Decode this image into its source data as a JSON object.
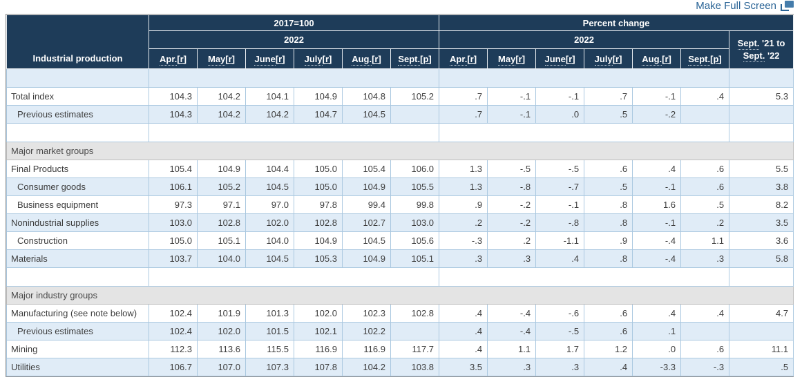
{
  "page": {
    "make_full_screen_label": "Make Full Screen"
  },
  "colors": {
    "header_navy": "#1e3c59",
    "row_light_blue": "#e0ecf7",
    "grid_border_blue": "#aac8e0",
    "section_gray": "#e4e4e4",
    "link_blue": "#2a6496",
    "outer_border_gray": "#8f8f8f"
  },
  "table": {
    "stub_header": "Industrial production",
    "index_group_label": "2017=100",
    "pct_group_label": "Percent change",
    "year_label": "2022",
    "yoy_header": {
      "line1_abbr": "Sept.",
      "line1_rest": " '21 to",
      "line2_abbr": "Sept.",
      "line2_rest": " '22"
    },
    "months": [
      {
        "abbr": "Apr.",
        "note": "[r]"
      },
      {
        "abbr": "May",
        "note": "[r]"
      },
      {
        "abbr": "June",
        "note": "[r]"
      },
      {
        "abbr": "July",
        "note": "[r]"
      },
      {
        "abbr": "Aug.",
        "note": "[r]"
      },
      {
        "abbr": "Sept.",
        "note": "[p]"
      }
    ],
    "rows": [
      {
        "type": "spacer"
      },
      {
        "type": "data",
        "label": "Total index",
        "indent": false,
        "idx": [
          "104.3",
          "104.2",
          "104.1",
          "104.9",
          "104.8",
          "105.2"
        ],
        "pct": [
          ".7",
          "-.1",
          "-.1",
          ".7",
          "-.1",
          ".4"
        ],
        "yoy": "5.3"
      },
      {
        "type": "data",
        "label": "Previous estimates",
        "indent": true,
        "idx": [
          "104.3",
          "104.2",
          "104.2",
          "104.7",
          "104.5",
          ""
        ],
        "pct": [
          ".7",
          "-.1",
          ".0",
          ".5",
          "-.2",
          ""
        ],
        "yoy": ""
      },
      {
        "type": "spacer"
      },
      {
        "type": "section",
        "label": "Major market groups"
      },
      {
        "type": "data",
        "label": "Final Products",
        "indent": false,
        "idx": [
          "105.4",
          "104.9",
          "104.4",
          "105.0",
          "105.4",
          "106.0"
        ],
        "pct": [
          "1.3",
          "-.5",
          "-.5",
          ".6",
          ".4",
          ".6"
        ],
        "yoy": "5.5"
      },
      {
        "type": "data",
        "label": "Consumer goods",
        "indent": true,
        "idx": [
          "106.1",
          "105.2",
          "104.5",
          "105.0",
          "104.9",
          "105.5"
        ],
        "pct": [
          "1.3",
          "-.8",
          "-.7",
          ".5",
          "-.1",
          ".6"
        ],
        "yoy": "3.8"
      },
      {
        "type": "data",
        "label": "Business equipment",
        "indent": true,
        "idx": [
          "97.3",
          "97.1",
          "97.0",
          "97.8",
          "99.4",
          "99.8"
        ],
        "pct": [
          ".9",
          "-.2",
          "-.1",
          ".8",
          "1.6",
          ".5"
        ],
        "yoy": "8.2"
      },
      {
        "type": "data",
        "label": "Nonindustrial supplies",
        "indent": false,
        "idx": [
          "103.0",
          "102.8",
          "102.0",
          "102.8",
          "102.7",
          "103.0"
        ],
        "pct": [
          ".2",
          "-.2",
          "-.8",
          ".8",
          "-.1",
          ".2"
        ],
        "yoy": "3.5"
      },
      {
        "type": "data",
        "label": "Construction",
        "indent": true,
        "idx": [
          "105.0",
          "105.1",
          "104.0",
          "104.9",
          "104.5",
          "105.6"
        ],
        "pct": [
          "-.3",
          ".2",
          "-1.1",
          ".9",
          "-.4",
          "1.1"
        ],
        "yoy": "3.6"
      },
      {
        "type": "data",
        "label": "Materials",
        "indent": false,
        "idx": [
          "103.7",
          "104.0",
          "104.5",
          "105.3",
          "104.9",
          "105.1"
        ],
        "pct": [
          ".3",
          ".3",
          ".4",
          ".8",
          "-.4",
          ".3"
        ],
        "yoy": "5.8"
      },
      {
        "type": "spacer"
      },
      {
        "type": "section",
        "label": "Major industry groups"
      },
      {
        "type": "data",
        "label": "Manufacturing (see note below)",
        "indent": false,
        "idx": [
          "102.4",
          "101.9",
          "101.3",
          "102.0",
          "102.3",
          "102.8"
        ],
        "pct": [
          ".4",
          "-.4",
          "-.6",
          ".6",
          ".4",
          ".4"
        ],
        "yoy": "4.7"
      },
      {
        "type": "data",
        "label": "Previous estimates",
        "indent": true,
        "idx": [
          "102.4",
          "102.0",
          "101.5",
          "102.1",
          "102.2",
          ""
        ],
        "pct": [
          ".4",
          "-.4",
          "-.5",
          ".6",
          ".1",
          ""
        ],
        "yoy": ""
      },
      {
        "type": "data",
        "label": "Mining",
        "indent": false,
        "idx": [
          "112.3",
          "113.6",
          "115.5",
          "116.9",
          "116.9",
          "117.7"
        ],
        "pct": [
          ".4",
          "1.1",
          "1.7",
          "1.2",
          ".0",
          ".6"
        ],
        "yoy": "11.1"
      },
      {
        "type": "data",
        "label": "Utilities",
        "indent": false,
        "idx": [
          "106.7",
          "107.0",
          "107.3",
          "107.8",
          "104.2",
          "103.8"
        ],
        "pct": [
          "3.5",
          ".3",
          ".3",
          ".4",
          "-3.3",
          "-.3"
        ],
        "yoy": ".5"
      }
    ]
  }
}
